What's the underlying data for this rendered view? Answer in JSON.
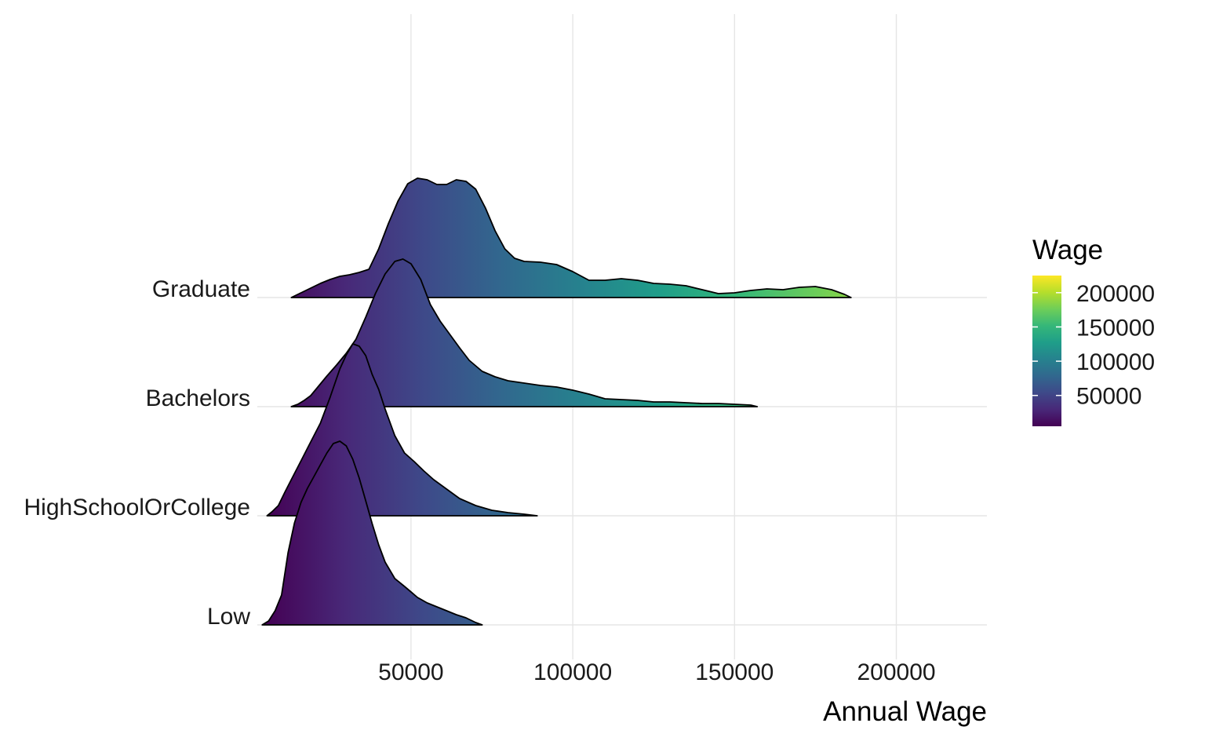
{
  "chart_data": {
    "type": "ridgeline",
    "xlabel": "Annual Wage",
    "ylabel": "",
    "xlim": [
      2500,
      228000
    ],
    "x_ticks": [
      50000,
      100000,
      150000,
      200000
    ],
    "x_tick_labels": [
      "50000",
      "100000",
      "150000",
      "200000"
    ],
    "grid": true,
    "fill_by": "x",
    "legend": {
      "title": "Wage",
      "placement": "right",
      "range": [
        5000,
        225000
      ],
      "ticks": [
        50000,
        100000,
        150000,
        200000
      ],
      "tick_labels": [
        "50000",
        "100000",
        "150000",
        "200000"
      ],
      "palette": "viridis"
    },
    "categories": [
      "Low",
      "HighSchoolOrCollege",
      "Bachelors",
      "Graduate"
    ],
    "series": [
      {
        "name": "Low",
        "points": [
          [
            4000,
            0
          ],
          [
            6000,
            0.05
          ],
          [
            8000,
            0.18
          ],
          [
            10000,
            0.38
          ],
          [
            12000,
            0.92
          ],
          [
            14000,
            1.3
          ],
          [
            16000,
            1.56
          ],
          [
            18000,
            1.74
          ],
          [
            20000,
            1.89
          ],
          [
            22000,
            2.04
          ],
          [
            24000,
            2.19
          ],
          [
            26000,
            2.31
          ],
          [
            28000,
            2.34
          ],
          [
            30000,
            2.28
          ],
          [
            32000,
            2.11
          ],
          [
            34000,
            1.87
          ],
          [
            36000,
            1.58
          ],
          [
            38000,
            1.29
          ],
          [
            40000,
            1.02
          ],
          [
            42000,
            0.8
          ],
          [
            45000,
            0.59
          ],
          [
            48000,
            0.49
          ],
          [
            50000,
            0.42
          ],
          [
            52000,
            0.35
          ],
          [
            55000,
            0.28
          ],
          [
            58000,
            0.23
          ],
          [
            61000,
            0.18
          ],
          [
            64000,
            0.13
          ],
          [
            67000,
            0.09
          ],
          [
            70000,
            0.03
          ],
          [
            72000,
            0
          ]
        ]
      },
      {
        "name": "HighSchoolOrCollege",
        "points": [
          [
            5500,
            0
          ],
          [
            7000,
            0.05
          ],
          [
            9000,
            0.13
          ],
          [
            11000,
            0.3
          ],
          [
            13000,
            0.46
          ],
          [
            16000,
            0.7
          ],
          [
            19000,
            0.94
          ],
          [
            22000,
            1.18
          ],
          [
            25000,
            1.51
          ],
          [
            28000,
            1.87
          ],
          [
            30000,
            2.05
          ],
          [
            32000,
            2.19
          ],
          [
            34000,
            2.16
          ],
          [
            36000,
            2.04
          ],
          [
            38000,
            1.8
          ],
          [
            40000,
            1.61
          ],
          [
            42000,
            1.36
          ],
          [
            45000,
            1.02
          ],
          [
            48000,
            0.8
          ],
          [
            51000,
            0.69
          ],
          [
            54000,
            0.57
          ],
          [
            57000,
            0.46
          ],
          [
            61000,
            0.34
          ],
          [
            65000,
            0.22
          ],
          [
            70000,
            0.13
          ],
          [
            75000,
            0.07
          ],
          [
            80000,
            0.04
          ],
          [
            85000,
            0.02
          ],
          [
            89000,
            0
          ]
        ]
      },
      {
        "name": "Bachelors",
        "points": [
          [
            13000,
            0
          ],
          [
            15000,
            0.03
          ],
          [
            17000,
            0.08
          ],
          [
            19000,
            0.14
          ],
          [
            21000,
            0.24
          ],
          [
            24000,
            0.39
          ],
          [
            27000,
            0.53
          ],
          [
            30000,
            0.68
          ],
          [
            33000,
            0.86
          ],
          [
            36000,
            1.14
          ],
          [
            39000,
            1.44
          ],
          [
            42000,
            1.69
          ],
          [
            45000,
            1.85
          ],
          [
            47500,
            1.88
          ],
          [
            50000,
            1.82
          ],
          [
            53000,
            1.62
          ],
          [
            56000,
            1.3
          ],
          [
            59000,
            1.09
          ],
          [
            62000,
            0.92
          ],
          [
            65000,
            0.75
          ],
          [
            68000,
            0.59
          ],
          [
            72000,
            0.45
          ],
          [
            76000,
            0.38
          ],
          [
            80000,
            0.33
          ],
          [
            85000,
            0.3
          ],
          [
            90000,
            0.27
          ],
          [
            95000,
            0.25
          ],
          [
            100000,
            0.21
          ],
          [
            105000,
            0.16
          ],
          [
            110000,
            0.1
          ],
          [
            115000,
            0.09
          ],
          [
            120000,
            0.08
          ],
          [
            125000,
            0.06
          ],
          [
            130000,
            0.06
          ],
          [
            135000,
            0.05
          ],
          [
            140000,
            0.04
          ],
          [
            145000,
            0.04
          ],
          [
            150000,
            0.03
          ],
          [
            155000,
            0.02
          ],
          [
            157000,
            0
          ]
        ]
      },
      {
        "name": "Graduate",
        "points": [
          [
            13000,
            0
          ],
          [
            16000,
            0.06
          ],
          [
            19000,
            0.12
          ],
          [
            22000,
            0.18
          ],
          [
            25000,
            0.23
          ],
          [
            28000,
            0.27
          ],
          [
            31000,
            0.29
          ],
          [
            34000,
            0.32
          ],
          [
            37000,
            0.36
          ],
          [
            40000,
            0.62
          ],
          [
            43000,
            0.94
          ],
          [
            46000,
            1.23
          ],
          [
            49000,
            1.45
          ],
          [
            52000,
            1.52
          ],
          [
            55000,
            1.5
          ],
          [
            58000,
            1.44
          ],
          [
            61000,
            1.44
          ],
          [
            64000,
            1.5
          ],
          [
            67000,
            1.48
          ],
          [
            70000,
            1.38
          ],
          [
            73000,
            1.14
          ],
          [
            76000,
            0.85
          ],
          [
            79000,
            0.62
          ],
          [
            82000,
            0.5
          ],
          [
            85000,
            0.46
          ],
          [
            90000,
            0.45
          ],
          [
            95000,
            0.42
          ],
          [
            100000,
            0.33
          ],
          [
            105000,
            0.22
          ],
          [
            110000,
            0.22
          ],
          [
            115000,
            0.24
          ],
          [
            120000,
            0.22
          ],
          [
            125000,
            0.18
          ],
          [
            130000,
            0.17
          ],
          [
            135000,
            0.15
          ],
          [
            140000,
            0.1
          ],
          [
            145000,
            0.05
          ],
          [
            150000,
            0.06
          ],
          [
            155000,
            0.09
          ],
          [
            160000,
            0.11
          ],
          [
            165000,
            0.1
          ],
          [
            170000,
            0.13
          ],
          [
            175000,
            0.14
          ],
          [
            180000,
            0.1
          ],
          [
            184000,
            0.04
          ],
          [
            186000,
            0
          ]
        ]
      }
    ]
  }
}
